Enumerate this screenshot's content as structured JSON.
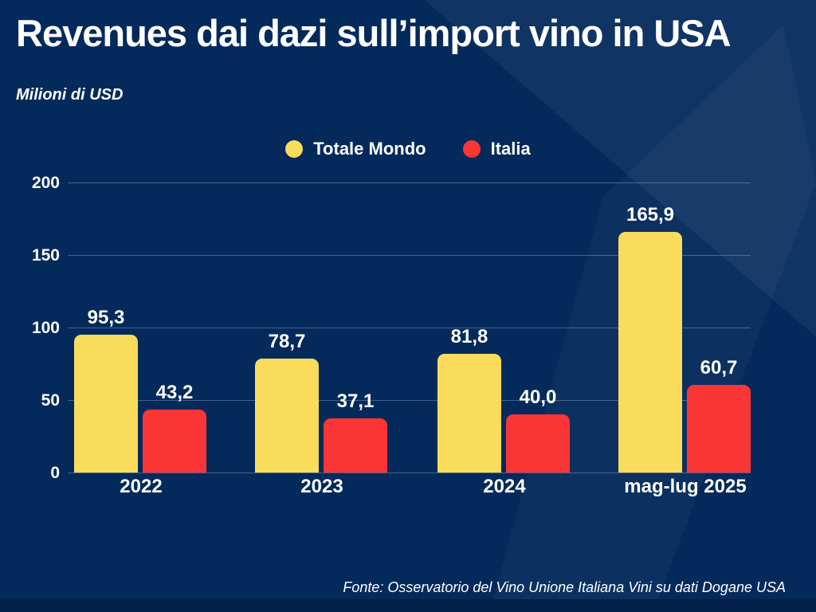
{
  "header": {
    "title": "Revenues dai dazi sull’import vino in USA",
    "subtitle": "Milioni di USD"
  },
  "colors": {
    "background": "#042A5C",
    "bottom_stripe": "#02204A",
    "world_yellow": "#F9DC5C",
    "italy_red": "#F93535",
    "text": "#FFFFFF",
    "gridline": "#A8BEDA"
  },
  "legend": [
    {
      "label": "Totale Mondo",
      "color": "#F9DC5C"
    },
    {
      "label": "Italia",
      "color": "#F93535"
    }
  ],
  "chart_data": {
    "type": "bar",
    "title": "Revenues dai dazi sull’import vino in USA",
    "ylabel": "Milioni di USD",
    "categories": [
      "2022",
      "2023",
      "2024",
      "mag-lug 2025"
    ],
    "series": [
      {
        "name": "Totale Mondo",
        "color": "#F9DC5C",
        "values": [
          95.3,
          78.7,
          81.8,
          165.9
        ],
        "labels": [
          "95,3",
          "78,7",
          "81,8",
          "165,9"
        ]
      },
      {
        "name": "Italia",
        "color": "#F93535",
        "values": [
          43.2,
          37.1,
          40.0,
          60.7
        ],
        "labels": [
          "43,2",
          "37,1",
          "40,0",
          "60,7"
        ]
      }
    ],
    "ylim": [
      0,
      200
    ],
    "yticks": [
      0,
      50,
      100,
      150,
      200
    ],
    "grid": true,
    "legend_position": "top-center"
  },
  "footer": {
    "source": "Fonte: Osservatorio del Vino Unione Italiana Vini su dati Dogane USA"
  }
}
